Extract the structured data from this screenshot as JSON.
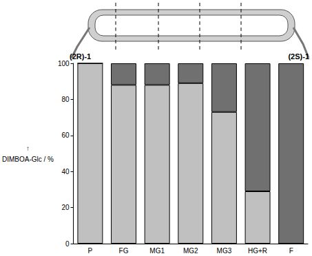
{
  "chart_data": {
    "type": "bar",
    "stacked": true,
    "ylabel": "↑\nDIMBOA-Glc / %",
    "categories": [
      "P",
      "FG",
      "MG1",
      "MG2",
      "MG3",
      "HG+R",
      "F"
    ],
    "series": [
      {
        "name": "(2R)-1",
        "color": "#c0c0c0",
        "values": [
          100,
          88,
          88,
          89,
          73,
          29,
          0
        ]
      },
      {
        "name": "(2S)-1",
        "color": "#707070",
        "values": [
          0,
          12,
          12,
          11,
          27,
          71,
          100
        ]
      }
    ],
    "ylim": [
      0,
      100
    ],
    "yticks": [
      0,
      20,
      40,
      60,
      80,
      100
    ]
  }
}
